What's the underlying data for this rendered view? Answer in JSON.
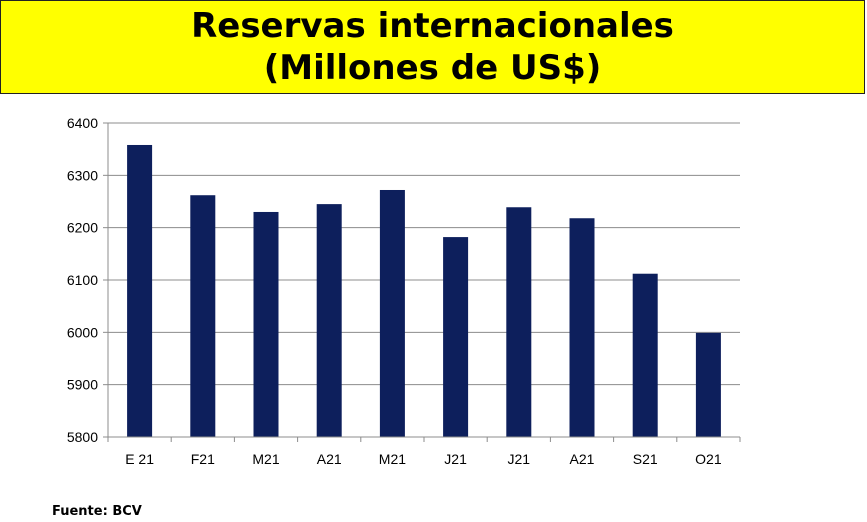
{
  "title_line1": "Reservas internacionales",
  "title_line2": "(Millones de US$)",
  "source": "Fuente: BCV",
  "chart_data": {
    "type": "bar",
    "title": "Reservas internacionales (Millones de US$)",
    "xlabel": "",
    "ylabel": "",
    "categories": [
      "E 21",
      "F21",
      "M21",
      "A21",
      "M21",
      "J21",
      "J21",
      "A21",
      "S21",
      "O21"
    ],
    "values": [
      6358,
      6262,
      6230,
      6245,
      6272,
      6182,
      6239,
      6218,
      6112,
      5999
    ],
    "ylim": [
      5800,
      6400
    ],
    "yticks": [
      5800,
      5900,
      6000,
      6100,
      6200,
      6300,
      6400
    ],
    "grid": true,
    "legend": "none",
    "bar_color": "#0d1f5c"
  }
}
